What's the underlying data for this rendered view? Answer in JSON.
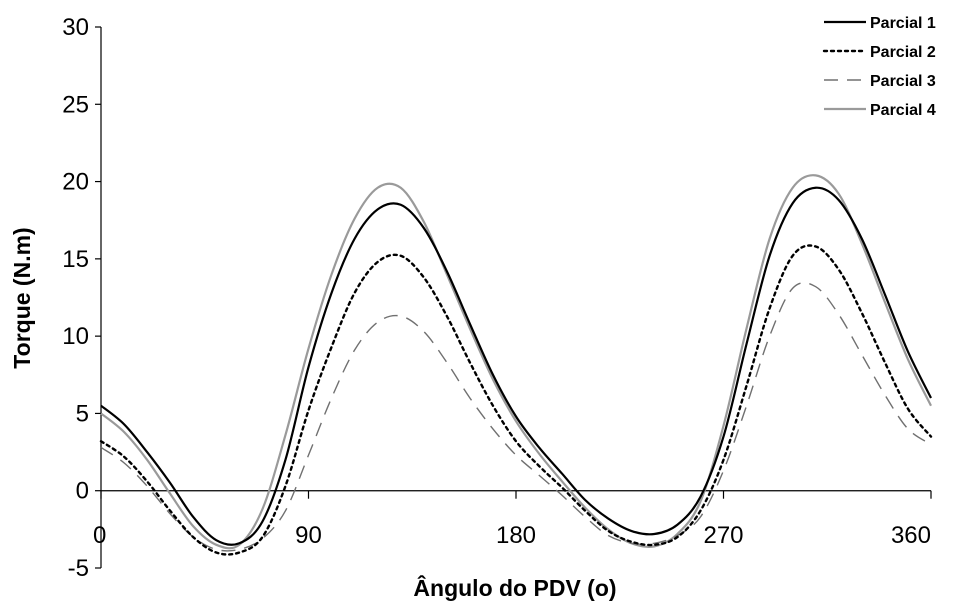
{
  "chart_data": {
    "type": "line",
    "xlabel": "Ângulo do PDV (o)",
    "ylabel": "Torque (N.m)",
    "xlim": [
      0,
      360
    ],
    "ylim": [
      -5,
      30
    ],
    "x_ticks": [
      0,
      90,
      180,
      270,
      360
    ],
    "y_ticks": [
      -5,
      0,
      5,
      10,
      15,
      20,
      25,
      30
    ],
    "grid": false,
    "legend_position": "top-right",
    "series": [
      {
        "name": "Parcial 1",
        "style": "solid",
        "color": "#000000",
        "points": [
          [
            0,
            5.5
          ],
          [
            10,
            4.3
          ],
          [
            20,
            2.5
          ],
          [
            30,
            0.5
          ],
          [
            40,
            -1.7
          ],
          [
            50,
            -3.2
          ],
          [
            60,
            -3.4
          ],
          [
            70,
            -2
          ],
          [
            80,
            2
          ],
          [
            90,
            8
          ],
          [
            100,
            12.8
          ],
          [
            110,
            16.3
          ],
          [
            120,
            18.2
          ],
          [
            130,
            18.5
          ],
          [
            140,
            17
          ],
          [
            150,
            14.2
          ],
          [
            160,
            10.8
          ],
          [
            170,
            7.5
          ],
          [
            180,
            4.8
          ],
          [
            190,
            2.8
          ],
          [
            200,
            1.1
          ],
          [
            210,
            -0.6
          ],
          [
            220,
            -1.8
          ],
          [
            230,
            -2.6
          ],
          [
            240,
            -2.8
          ],
          [
            250,
            -2.2
          ],
          [
            260,
            -0.4
          ],
          [
            270,
            3.5
          ],
          [
            280,
            9.5
          ],
          [
            290,
            15.2
          ],
          [
            300,
            18.6
          ],
          [
            310,
            19.6
          ],
          [
            320,
            18.8
          ],
          [
            330,
            16.3
          ],
          [
            340,
            12.7
          ],
          [
            350,
            9
          ],
          [
            360,
            6
          ]
        ]
      },
      {
        "name": "Parcial 2",
        "style": "dotted",
        "color": "#000000",
        "points": [
          [
            0,
            3.2
          ],
          [
            10,
            2.2
          ],
          [
            20,
            0.6
          ],
          [
            30,
            -1.3
          ],
          [
            40,
            -3
          ],
          [
            50,
            -4
          ],
          [
            60,
            -4
          ],
          [
            70,
            -3
          ],
          [
            80,
            0.3
          ],
          [
            90,
            5.2
          ],
          [
            100,
            9.3
          ],
          [
            110,
            12.8
          ],
          [
            120,
            14.8
          ],
          [
            130,
            15.2
          ],
          [
            140,
            13.8
          ],
          [
            150,
            11.3
          ],
          [
            160,
            8.3
          ],
          [
            170,
            5.5
          ],
          [
            180,
            3.2
          ],
          [
            190,
            1.6
          ],
          [
            200,
            0.2
          ],
          [
            210,
            -1.3
          ],
          [
            220,
            -2.6
          ],
          [
            230,
            -3.3
          ],
          [
            240,
            -3.5
          ],
          [
            250,
            -3
          ],
          [
            260,
            -1.3
          ],
          [
            270,
            2
          ],
          [
            280,
            6.8
          ],
          [
            290,
            11.8
          ],
          [
            300,
            15.2
          ],
          [
            310,
            15.8
          ],
          [
            320,
            14.3
          ],
          [
            330,
            11.5
          ],
          [
            340,
            8.3
          ],
          [
            350,
            5.3
          ],
          [
            360,
            3.5
          ]
        ]
      },
      {
        "name": "Parcial 3",
        "style": "dashed",
        "color": "#707070",
        "points": [
          [
            0,
            2.8
          ],
          [
            10,
            1.8
          ],
          [
            20,
            0.3
          ],
          [
            30,
            -1.5
          ],
          [
            40,
            -3
          ],
          [
            50,
            -3.8
          ],
          [
            60,
            -3.8
          ],
          [
            70,
            -3.1
          ],
          [
            80,
            -1.3
          ],
          [
            90,
            2.3
          ],
          [
            100,
            6
          ],
          [
            110,
            9.1
          ],
          [
            120,
            10.9
          ],
          [
            130,
            11.3
          ],
          [
            140,
            10.3
          ],
          [
            150,
            8.3
          ],
          [
            160,
            6
          ],
          [
            170,
            4
          ],
          [
            180,
            2.3
          ],
          [
            190,
            1
          ],
          [
            200,
            -0.3
          ],
          [
            210,
            -1.7
          ],
          [
            220,
            -2.9
          ],
          [
            230,
            -3.4
          ],
          [
            240,
            -3.4
          ],
          [
            250,
            -2.9
          ],
          [
            260,
            -1.7
          ],
          [
            270,
            1.3
          ],
          [
            280,
            5.5
          ],
          [
            290,
            10
          ],
          [
            300,
            13.1
          ],
          [
            310,
            13.2
          ],
          [
            320,
            11.4
          ],
          [
            330,
            8.8
          ],
          [
            340,
            6.2
          ],
          [
            350,
            4
          ],
          [
            360,
            3
          ]
        ]
      },
      {
        "name": "Parcial 4",
        "style": "solid",
        "color": "#9a9a9a",
        "points": [
          [
            0,
            5
          ],
          [
            10,
            3.8
          ],
          [
            20,
            2
          ],
          [
            30,
            -0.2
          ],
          [
            40,
            -2.3
          ],
          [
            50,
            -3.5
          ],
          [
            60,
            -3.5
          ],
          [
            70,
            -1.2
          ],
          [
            80,
            3.6
          ],
          [
            90,
            9.2
          ],
          [
            100,
            14
          ],
          [
            110,
            17.6
          ],
          [
            120,
            19.6
          ],
          [
            130,
            19.6
          ],
          [
            140,
            17.4
          ],
          [
            150,
            14
          ],
          [
            160,
            10.5
          ],
          [
            170,
            7.2
          ],
          [
            180,
            4.5
          ],
          [
            190,
            2.4
          ],
          [
            200,
            0.6
          ],
          [
            210,
            -1.1
          ],
          [
            220,
            -2.5
          ],
          [
            230,
            -3.4
          ],
          [
            240,
            -3.6
          ],
          [
            250,
            -2.8
          ],
          [
            260,
            -0.7
          ],
          [
            270,
            4.2
          ],
          [
            280,
            10.5
          ],
          [
            290,
            16.3
          ],
          [
            300,
            19.6
          ],
          [
            310,
            20.4
          ],
          [
            320,
            19.2
          ],
          [
            330,
            16
          ],
          [
            340,
            12.2
          ],
          [
            350,
            8.5
          ],
          [
            360,
            5.5
          ]
        ]
      }
    ]
  }
}
